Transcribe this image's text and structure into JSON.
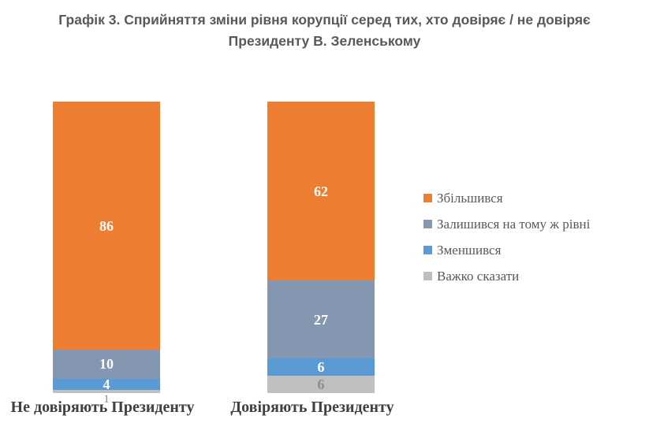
{
  "title": {
    "line1": "Графік 3. Сприйняття зміни рівня корупції серед тих, хто довіряє / не довіряє",
    "line2": "Президенту В. Зеленському"
  },
  "chart_data": {
    "type": "bar",
    "subtype": "stacked-column",
    "title": "Графік 3. Сприйняття зміни рівня корупції серед тих, хто довіряє / не довіряє Президенту В. Зеленському",
    "categories": [
      "Не довіряють Президенту",
      "Довіряють Президенту"
    ],
    "series": [
      {
        "name": "Збільшився",
        "color": "#ED7D31",
        "label_color": "#FFFFFF",
        "values": [
          86,
          62
        ]
      },
      {
        "name": "Залишився на тому ж рівні",
        "color": "#8496B0",
        "label_color": "#FFFFFF",
        "values": [
          10,
          27
        ]
      },
      {
        "name": "Зменшився",
        "color": "#5B9BD5",
        "label_color": "#FFFFFF",
        "values": [
          4,
          6
        ]
      },
      {
        "name": "Важко сказати",
        "color": "#BFBFBF",
        "label_color": "#8C8C8C",
        "values": [
          1,
          6
        ]
      }
    ],
    "data_labels_shown": true,
    "legend_position": "right",
    "grid": false,
    "y_axis_shown": false,
    "xlabel": "",
    "ylabel": ""
  }
}
